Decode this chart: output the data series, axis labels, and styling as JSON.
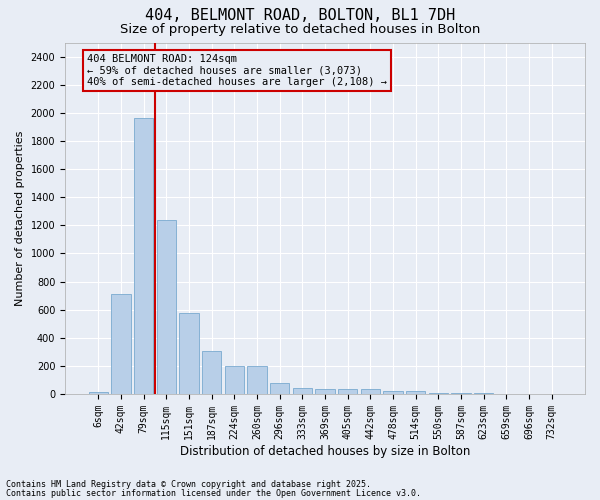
{
  "title1": "404, BELMONT ROAD, BOLTON, BL1 7DH",
  "title2": "Size of property relative to detached houses in Bolton",
  "xlabel": "Distribution of detached houses by size in Bolton",
  "ylabel": "Number of detached properties",
  "categories": [
    "6sqm",
    "42sqm",
    "79sqm",
    "115sqm",
    "151sqm",
    "187sqm",
    "224sqm",
    "260sqm",
    "296sqm",
    "333sqm",
    "369sqm",
    "405sqm",
    "442sqm",
    "478sqm",
    "514sqm",
    "550sqm",
    "587sqm",
    "623sqm",
    "659sqm",
    "696sqm",
    "732sqm"
  ],
  "values": [
    15,
    710,
    1960,
    1240,
    575,
    305,
    200,
    200,
    80,
    45,
    35,
    35,
    35,
    20,
    20,
    10,
    5,
    5,
    0,
    0,
    0
  ],
  "bar_color": "#b8cfe8",
  "bar_edge_color": "#7aaad0",
  "background_color": "#e8edf5",
  "grid_color": "#ffffff",
  "vline_color": "#cc0000",
  "annotation_text": "404 BELMONT ROAD: 124sqm\n← 59% of detached houses are smaller (3,073)\n40% of semi-detached houses are larger (2,108) →",
  "annotation_box_color": "#cc0000",
  "ylim": [
    0,
    2500
  ],
  "yticks": [
    0,
    200,
    400,
    600,
    800,
    1000,
    1200,
    1400,
    1600,
    1800,
    2000,
    2200,
    2400
  ],
  "footer1": "Contains HM Land Registry data © Crown copyright and database right 2025.",
  "footer2": "Contains public sector information licensed under the Open Government Licence v3.0.",
  "title_fontsize": 11,
  "subtitle_fontsize": 9.5,
  "tick_fontsize": 7,
  "ylabel_fontsize": 8,
  "xlabel_fontsize": 8.5,
  "footer_fontsize": 6,
  "annot_fontsize": 7.5
}
